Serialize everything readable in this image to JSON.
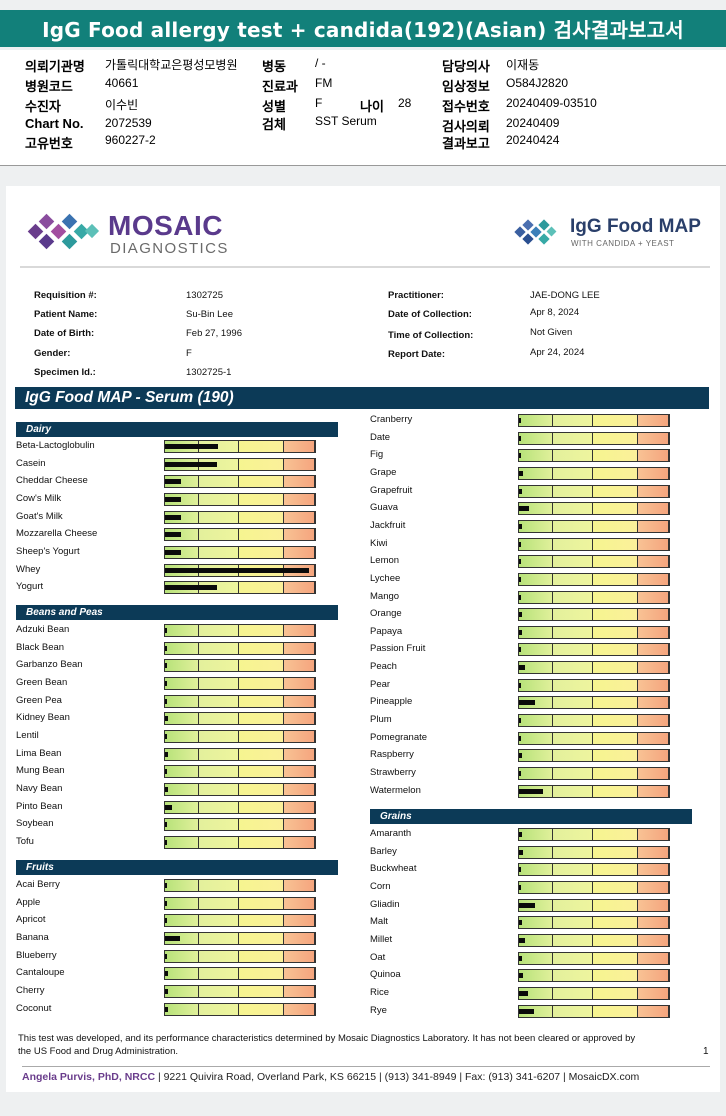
{
  "banner": {
    "title": "IgG Food allergy test + candida(192)(Asian) 검사결과보고서"
  },
  "info": {
    "institution_label": "의뢰기관명",
    "institution": "가톨릭대학교은평성모병원",
    "hospital_code_label": "병원코드",
    "hospital_code": "40661",
    "patient_label": "수진자",
    "patient": "이수빈",
    "chart_label": "Chart No.",
    "chart": "2072539",
    "unique_label": "고유번호",
    "unique": "960227-2",
    "ward_label": "병동",
    "ward": "/ -",
    "dept_label": "진료과",
    "dept": "FM",
    "sex_label": "성별",
    "sex": "F",
    "age_label": "나이",
    "age": "28",
    "specimen_label": "검체",
    "specimen": "SST Serum",
    "doctor_label": "담당의사",
    "doctor": "이재동",
    "clinical_label": "임상정보",
    "clinical": "O584J2820",
    "receipt_label": "접수번호",
    "receipt": "20240409-03510",
    "request_label": "검사의뢰",
    "request": "20240409",
    "result_label": "결과보고",
    "result": "20240424"
  },
  "report": {
    "logo_left_name": "MOSAIC",
    "logo_left_sub": "DIAGNOSTICS",
    "logo_right_name": "IgG Food MAP",
    "logo_right_sub": "WITH CANDIDA + YEAST",
    "requisition_label": "Requisition #:",
    "requisition": "1302725",
    "patient_name_label": "Patient Name:",
    "patient_name": "Su-Bin Lee",
    "dob_label": "Date of Birth:",
    "dob": "Feb 27, 1996",
    "gender_label": "Gender:",
    "gender": "F",
    "specimen_id_label": "Specimen Id.:",
    "specimen_id": "1302725-1",
    "practitioner_label": "Practitioner:",
    "practitioner": "JAE-DONG LEE",
    "collection_date_label": "Date of Collection:",
    "collection_date": "Apr 8, 2024",
    "collection_time_label": "Time of Collection:",
    "collection_time": "Not Given",
    "report_date_label": "Report Date:",
    "report_date": "Apr 24, 2024",
    "title": "IgG Food MAP - Serum (190)",
    "disclaimer": "This test was developed, and its performance characteristics determined by Mosaic Diagnostics Laboratory. It has not been cleared or approved by the US Food and Drug Administration.",
    "page_number": "1",
    "footer_name": "Angela Purvis, PhD, NRCC",
    "footer_rest": " | 9221 Quivira Road, Overland Park, KS 66215  |  (913) 341-8949  |  Fax: (913) 341-6207 | MosaicDX.com"
  },
  "colors": {
    "header_navy": "#0c3a57",
    "banner_teal": "#12807a",
    "zone_green": "#b7e27a",
    "zone_lightgreen": "#eef59e",
    "zone_yellow": "#f6f590",
    "zone_orange": "#f5a57e"
  },
  "chart_data": {
    "type": "bar",
    "scale": "relative IgG level, 0 = none, 1 = top of scale",
    "zones": [
      "green",
      "light-green",
      "yellow",
      "orange"
    ],
    "sections": [
      {
        "name": "Dairy",
        "items": [
          {
            "food": "Beta-Lactoglobulin",
            "level": 0.36
          },
          {
            "food": "Casein",
            "level": 0.35
          },
          {
            "food": "Cheddar Cheese",
            "level": 0.11
          },
          {
            "food": "Cow's Milk",
            "level": 0.11
          },
          {
            "food": "Goat's Milk",
            "level": 0.11
          },
          {
            "food": "Mozzarella Cheese",
            "level": 0.11
          },
          {
            "food": "Sheep's Yogurt",
            "level": 0.11
          },
          {
            "food": "Whey",
            "level": 0.97
          },
          {
            "food": "Yogurt",
            "level": 0.35
          }
        ]
      },
      {
        "name": "Beans and Peas",
        "items": [
          {
            "food": "Adzuki Bean",
            "level": 0.01
          },
          {
            "food": "Black Bean",
            "level": 0.01
          },
          {
            "food": "Garbanzo Bean",
            "level": 0.01
          },
          {
            "food": "Green Bean",
            "level": 0.01
          },
          {
            "food": "Green Pea",
            "level": 0.01
          },
          {
            "food": "Kidney Bean",
            "level": 0.02
          },
          {
            "food": "Lentil",
            "level": 0.01
          },
          {
            "food": "Lima Bean",
            "level": 0.02
          },
          {
            "food": "Mung Bean",
            "level": 0.01
          },
          {
            "food": "Navy Bean",
            "level": 0.02
          },
          {
            "food": "Pinto Bean",
            "level": 0.05
          },
          {
            "food": "Soybean",
            "level": 0.01
          },
          {
            "food": "Tofu",
            "level": 0.01
          }
        ]
      },
      {
        "name": "Fruits",
        "items": [
          {
            "food": "Acai Berry",
            "level": 0.01
          },
          {
            "food": "Apple",
            "level": 0.01
          },
          {
            "food": "Apricot",
            "level": 0.01
          },
          {
            "food": "Banana",
            "level": 0.1
          },
          {
            "food": "Blueberry",
            "level": 0.01
          },
          {
            "food": "Cantaloupe",
            "level": 0.02
          },
          {
            "food": "Cherry",
            "level": 0.02
          },
          {
            "food": "Coconut",
            "level": 0.02
          },
          {
            "food": "Cranberry",
            "level": 0.01
          },
          {
            "food": "Date",
            "level": 0.01
          },
          {
            "food": "Fig",
            "level": 0.01
          },
          {
            "food": "Grape",
            "level": 0.03
          },
          {
            "food": "Grapefruit",
            "level": 0.02
          },
          {
            "food": "Guava",
            "level": 0.07
          },
          {
            "food": "Jackfruit",
            "level": 0.02
          },
          {
            "food": "Kiwi",
            "level": 0.01
          },
          {
            "food": "Lemon",
            "level": 0.01
          },
          {
            "food": "Lychee",
            "level": 0.01
          },
          {
            "food": "Mango",
            "level": 0.01
          },
          {
            "food": "Orange",
            "level": 0.02
          },
          {
            "food": "Papaya",
            "level": 0.02
          },
          {
            "food": "Passion Fruit",
            "level": 0.01
          },
          {
            "food": "Peach",
            "level": 0.04
          },
          {
            "food": "Pear",
            "level": 0.01
          },
          {
            "food": "Pineapple",
            "level": 0.11
          },
          {
            "food": "Plum",
            "level": 0.01
          },
          {
            "food": "Pomegranate",
            "level": 0.01
          },
          {
            "food": "Raspberry",
            "level": 0.02
          },
          {
            "food": "Strawberry",
            "level": 0.01
          },
          {
            "food": "Watermelon",
            "level": 0.16
          }
        ]
      },
      {
        "name": "Grains",
        "items": [
          {
            "food": "Amaranth",
            "level": 0.02
          },
          {
            "food": "Barley",
            "level": 0.03
          },
          {
            "food": "Buckwheat",
            "level": 0.01
          },
          {
            "food": "Corn",
            "level": 0.01
          },
          {
            "food": "Gliadin",
            "level": 0.11
          },
          {
            "food": "Malt",
            "level": 0.02
          },
          {
            "food": "Millet",
            "level": 0.04
          },
          {
            "food": "Oat",
            "level": 0.02
          },
          {
            "food": "Quinoa",
            "level": 0.03
          },
          {
            "food": "Rice",
            "level": 0.06
          },
          {
            "food": "Rye",
            "level": 0.1
          }
        ]
      }
    ]
  }
}
